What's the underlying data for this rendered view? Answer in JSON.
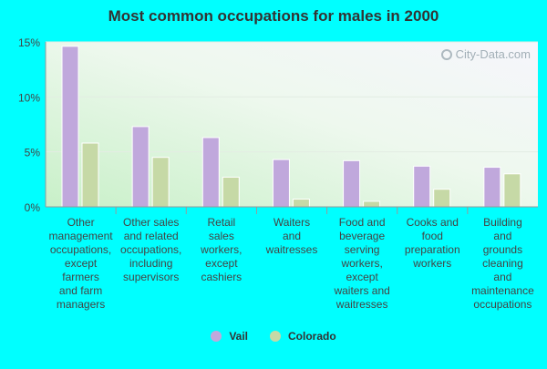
{
  "chart_data": {
    "type": "bar",
    "title": "Most common occupations for males in 2000",
    "categories": [
      [
        "Other",
        "management",
        "occupations,",
        "except",
        "farmers",
        "and farm",
        "managers"
      ],
      [
        "Other sales",
        "and related",
        "occupations,",
        "including",
        "supervisors"
      ],
      [
        "Retail",
        "sales",
        "workers,",
        "except",
        "cashiers"
      ],
      [
        "Waiters",
        "and",
        "waitresses"
      ],
      [
        "Food and",
        "beverage",
        "serving",
        "workers,",
        "except",
        "waiters and",
        "waitresses"
      ],
      [
        "Cooks and",
        "food",
        "preparation",
        "workers"
      ],
      [
        "Building",
        "and",
        "grounds",
        "cleaning",
        "and",
        "maintenance",
        "occupations"
      ]
    ],
    "series": [
      {
        "name": "Vail",
        "color": "#c0a8dc",
        "values": [
          14.6,
          7.3,
          6.3,
          4.3,
          4.2,
          3.7,
          3.6
        ]
      },
      {
        "name": "Colorado",
        "color": "#c6d9a6",
        "values": [
          5.8,
          4.5,
          2.7,
          0.7,
          0.5,
          1.6,
          3.0
        ]
      }
    ],
    "yticks": [
      "0%",
      "5%",
      "10%",
      "15%"
    ],
    "ylim": [
      0,
      15
    ],
    "legend_position": "bottom"
  },
  "watermark": {
    "text": "City-Data.com",
    "icon": "search-icon"
  }
}
